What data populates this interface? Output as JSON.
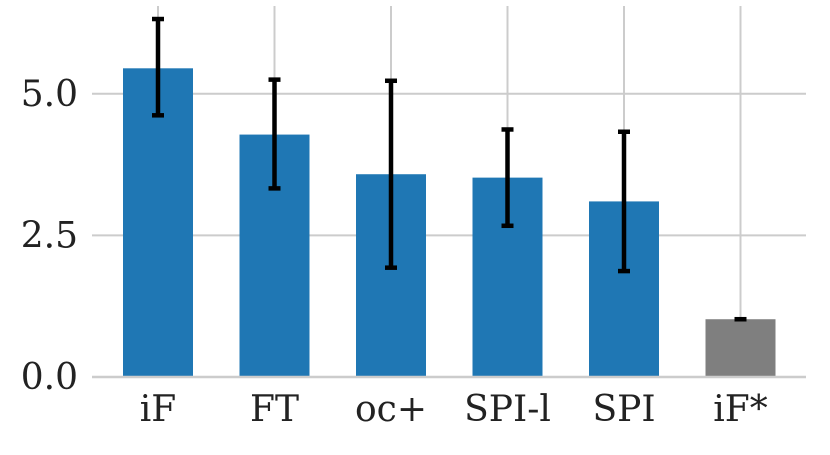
{
  "chart_data": {
    "type": "bar",
    "categories": [
      "iF",
      "FT",
      "oc+",
      "SPI-l",
      "SPI",
      "iF*"
    ],
    "values": [
      5.45,
      4.28,
      3.58,
      3.52,
      3.1,
      1.02
    ],
    "error_low": [
      4.62,
      3.33,
      1.93,
      2.67,
      1.87,
      1.02
    ],
    "error_high": [
      6.32,
      5.25,
      5.23,
      4.37,
      4.33,
      1.02
    ],
    "bar_colors": [
      "#1f77b4",
      "#1f77b4",
      "#1f77b4",
      "#1f77b4",
      "#1f77b4",
      "#7f7f7f"
    ],
    "yticks": [
      "0.0",
      "2.5",
      "5.0"
    ],
    "ytick_values": [
      0,
      2.5,
      5.0
    ],
    "ylim": [
      0,
      6.55
    ],
    "xgrid": true,
    "ygrid": true,
    "title": "",
    "xlabel": "",
    "ylabel": ""
  }
}
